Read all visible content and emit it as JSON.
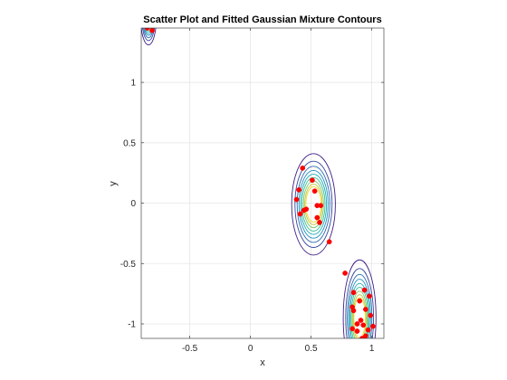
{
  "chart_data": {
    "type": "scatter",
    "title": "Scatter Plot and Fitted Gaussian Mixture Contours",
    "xlabel": "x",
    "ylabel": "y",
    "xlim": [
      -0.9,
      1.1
    ],
    "ylim": [
      -1.12,
      1.45
    ],
    "xticks": [
      -0.5,
      0,
      0.5,
      1
    ],
    "xtick_labels": [
      "-0.5",
      "0",
      "0.5",
      "1"
    ],
    "yticks": [
      -1,
      -0.5,
      0,
      0.5,
      1
    ],
    "ytick_labels": [
      "-1",
      "-0.5",
      "0",
      "0.5",
      "1"
    ],
    "grid": true,
    "box": true,
    "marker_color": "#ff0000",
    "contour_colors": [
      "#3e1f85",
      "#34479e",
      "#2f6bb0",
      "#1f8fc0",
      "#1aaeb4",
      "#3ac098",
      "#7ec86b",
      "#c2c63c",
      "#f4d623"
    ],
    "points": [
      {
        "x": -0.85,
        "y": 1.45
      },
      {
        "x": -0.81,
        "y": 1.43
      },
      {
        "x": 0.43,
        "y": 0.29
      },
      {
        "x": 0.51,
        "y": 0.19
      },
      {
        "x": 0.4,
        "y": 0.11
      },
      {
        "x": 0.53,
        "y": 0.1
      },
      {
        "x": 0.38,
        "y": 0.03
      },
      {
        "x": 0.55,
        "y": -0.02
      },
      {
        "x": 0.58,
        "y": -0.02
      },
      {
        "x": 0.46,
        "y": -0.05
      },
      {
        "x": 0.44,
        "y": -0.06
      },
      {
        "x": 0.41,
        "y": -0.09
      },
      {
        "x": 0.55,
        "y": -0.12
      },
      {
        "x": 0.57,
        "y": -0.16
      },
      {
        "x": 0.65,
        "y": -0.32
      },
      {
        "x": 0.78,
        "y": -0.58
      },
      {
        "x": 0.85,
        "y": -0.74
      },
      {
        "x": 0.94,
        "y": -0.72
      },
      {
        "x": 0.98,
        "y": -0.77
      },
      {
        "x": 0.9,
        "y": -0.81
      },
      {
        "x": 0.84,
        "y": -0.86
      },
      {
        "x": 0.85,
        "y": -0.89
      },
      {
        "x": 0.95,
        "y": -0.88
      },
      {
        "x": 0.99,
        "y": -0.93
      },
      {
        "x": 0.91,
        "y": -0.97
      },
      {
        "x": 0.88,
        "y": -1.0
      },
      {
        "x": 0.93,
        "y": -1.01
      },
      {
        "x": 1.01,
        "y": -1.02
      },
      {
        "x": 0.84,
        "y": -1.04
      },
      {
        "x": 0.97,
        "y": -1.05
      },
      {
        "x": 0.88,
        "y": -1.06
      },
      {
        "x": 0.95,
        "y": -1.1
      },
      {
        "x": 0.92,
        "y": -1.12
      }
    ],
    "components": [
      {
        "cx": -0.84,
        "cy": 1.55,
        "sx": 0.022,
        "sy": 0.08
      },
      {
        "cx": 0.52,
        "cy": -0.01,
        "sx": 0.06,
        "sy": 0.14
      },
      {
        "cx": 0.9,
        "cy": -0.95,
        "sx": 0.045,
        "sy": 0.16
      }
    ],
    "contour_scales": [
      1.05,
      1.2,
      1.38,
      1.58,
      1.78,
      2.0,
      2.25,
      2.55,
      3.0
    ]
  }
}
